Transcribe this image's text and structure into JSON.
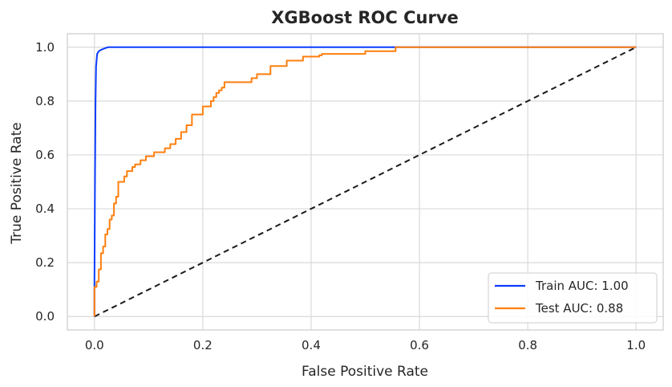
{
  "chart_data": {
    "type": "line",
    "title": "XGBoost ROC Curve",
    "xlabel": "False Positive Rate",
    "ylabel": "True Positive Rate",
    "xlim": [
      -0.05,
      1.05
    ],
    "ylim": [
      -0.05,
      1.05
    ],
    "xticks": [
      0.0,
      0.2,
      0.4,
      0.6,
      0.8,
      1.0
    ],
    "yticks": [
      0.0,
      0.2,
      0.4,
      0.6,
      0.8,
      1.0
    ],
    "xtick_labels": [
      "0.0",
      "0.2",
      "0.4",
      "0.6",
      "0.8",
      "1.0"
    ],
    "ytick_labels": [
      "0.0",
      "0.2",
      "0.4",
      "0.6",
      "0.8",
      "1.0"
    ],
    "grid": true,
    "legend_position": "bottom-right",
    "series": [
      {
        "name": "Train AUC: 1.00",
        "color": "#0a3cff",
        "style": "step",
        "x": [
          0.0,
          0.0,
          0.001,
          0.002,
          0.003,
          0.005,
          0.008,
          0.012,
          0.018,
          0.025,
          0.05,
          0.1,
          0.3,
          0.556,
          1.0
        ],
        "y": [
          0.0,
          0.12,
          0.5,
          0.8,
          0.93,
          0.975,
          0.985,
          0.99,
          0.995,
          1.0,
          1.0,
          1.0,
          1.0,
          1.0,
          1.0
        ]
      },
      {
        "name": "Test AUC: 0.88",
        "color": "#ff7f0e",
        "style": "step",
        "x": [
          0.0,
          0.0,
          0.004,
          0.004,
          0.008,
          0.008,
          0.012,
          0.012,
          0.016,
          0.016,
          0.02,
          0.02,
          0.024,
          0.024,
          0.028,
          0.028,
          0.032,
          0.032,
          0.036,
          0.036,
          0.04,
          0.04,
          0.044,
          0.044,
          0.055,
          0.055,
          0.06,
          0.06,
          0.07,
          0.07,
          0.075,
          0.075,
          0.085,
          0.085,
          0.095,
          0.095,
          0.11,
          0.11,
          0.13,
          0.13,
          0.14,
          0.14,
          0.15,
          0.15,
          0.16,
          0.16,
          0.17,
          0.17,
          0.18,
          0.18,
          0.2,
          0.2,
          0.215,
          0.215,
          0.22,
          0.22,
          0.225,
          0.225,
          0.23,
          0.23,
          0.235,
          0.235,
          0.24,
          0.24,
          0.29,
          0.29,
          0.3,
          0.3,
          0.325,
          0.325,
          0.355,
          0.355,
          0.385,
          0.385,
          0.415,
          0.415,
          0.42,
          0.42,
          0.5,
          0.5,
          0.556,
          0.556,
          1.0
        ],
        "y": [
          0.0,
          0.11,
          0.11,
          0.13,
          0.13,
          0.175,
          0.175,
          0.235,
          0.235,
          0.26,
          0.26,
          0.305,
          0.305,
          0.325,
          0.325,
          0.36,
          0.36,
          0.375,
          0.375,
          0.42,
          0.42,
          0.445,
          0.445,
          0.5,
          0.5,
          0.52,
          0.52,
          0.54,
          0.54,
          0.555,
          0.555,
          0.565,
          0.565,
          0.58,
          0.58,
          0.595,
          0.595,
          0.61,
          0.61,
          0.625,
          0.625,
          0.64,
          0.64,
          0.66,
          0.66,
          0.685,
          0.685,
          0.71,
          0.71,
          0.75,
          0.75,
          0.78,
          0.78,
          0.8,
          0.8,
          0.815,
          0.815,
          0.83,
          0.83,
          0.84,
          0.84,
          0.85,
          0.85,
          0.87,
          0.87,
          0.885,
          0.885,
          0.9,
          0.9,
          0.93,
          0.93,
          0.95,
          0.95,
          0.965,
          0.965,
          0.97,
          0.97,
          0.975,
          0.975,
          0.985,
          0.985,
          1.0,
          1.0
        ]
      },
      {
        "name": "",
        "color": "#1a1a1a",
        "style": "dashed",
        "x": [
          0.0,
          1.0
        ],
        "y": [
          0.0,
          1.0
        ]
      }
    ]
  }
}
